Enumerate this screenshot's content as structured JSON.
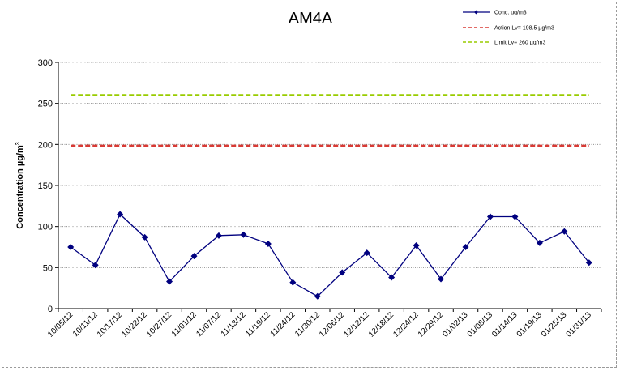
{
  "chart_data": {
    "type": "line",
    "title": "AM4A",
    "ylabel": "Concentration  µg/m",
    "ylabel_sup": "3",
    "ylim": [
      0,
      300
    ],
    "yticks": [
      "0",
      "50",
      "100",
      "150",
      "200",
      "250",
      "300"
    ],
    "grid": true,
    "legend_position": "top-right",
    "categories": [
      "10/05/12",
      "10/11/12",
      "10/17/12",
      "10/22/12",
      "10/27/12",
      "11/01/12",
      "11/07/12",
      "11/13/12",
      "11/19/12",
      "11/24/12",
      "11/30/12",
      "12/06/12",
      "12/12/12",
      "12/18/12",
      "12/24/12",
      "12/29/12",
      "01/02/13",
      "01/08/13",
      "01/14/13",
      "01/19/13",
      "01/25/13",
      "01/31/13"
    ],
    "series": [
      {
        "name": "Conc. ug/m3",
        "style": "line-marker",
        "color": "#00007f",
        "values": [
          75,
          53,
          115,
          87,
          33,
          64,
          89,
          90,
          79,
          32,
          15,
          44,
          68,
          38,
          77,
          36,
          75,
          112,
          112,
          80,
          94,
          56
        ]
      },
      {
        "name": "Action Lv= 198.5 µg/m3",
        "style": "dashed",
        "color": "#d83a34",
        "constant": 198.5
      },
      {
        "name": "Limit Lv= 260 µg/m3",
        "style": "dashed",
        "color": "#99cc00",
        "constant": 260
      }
    ]
  }
}
